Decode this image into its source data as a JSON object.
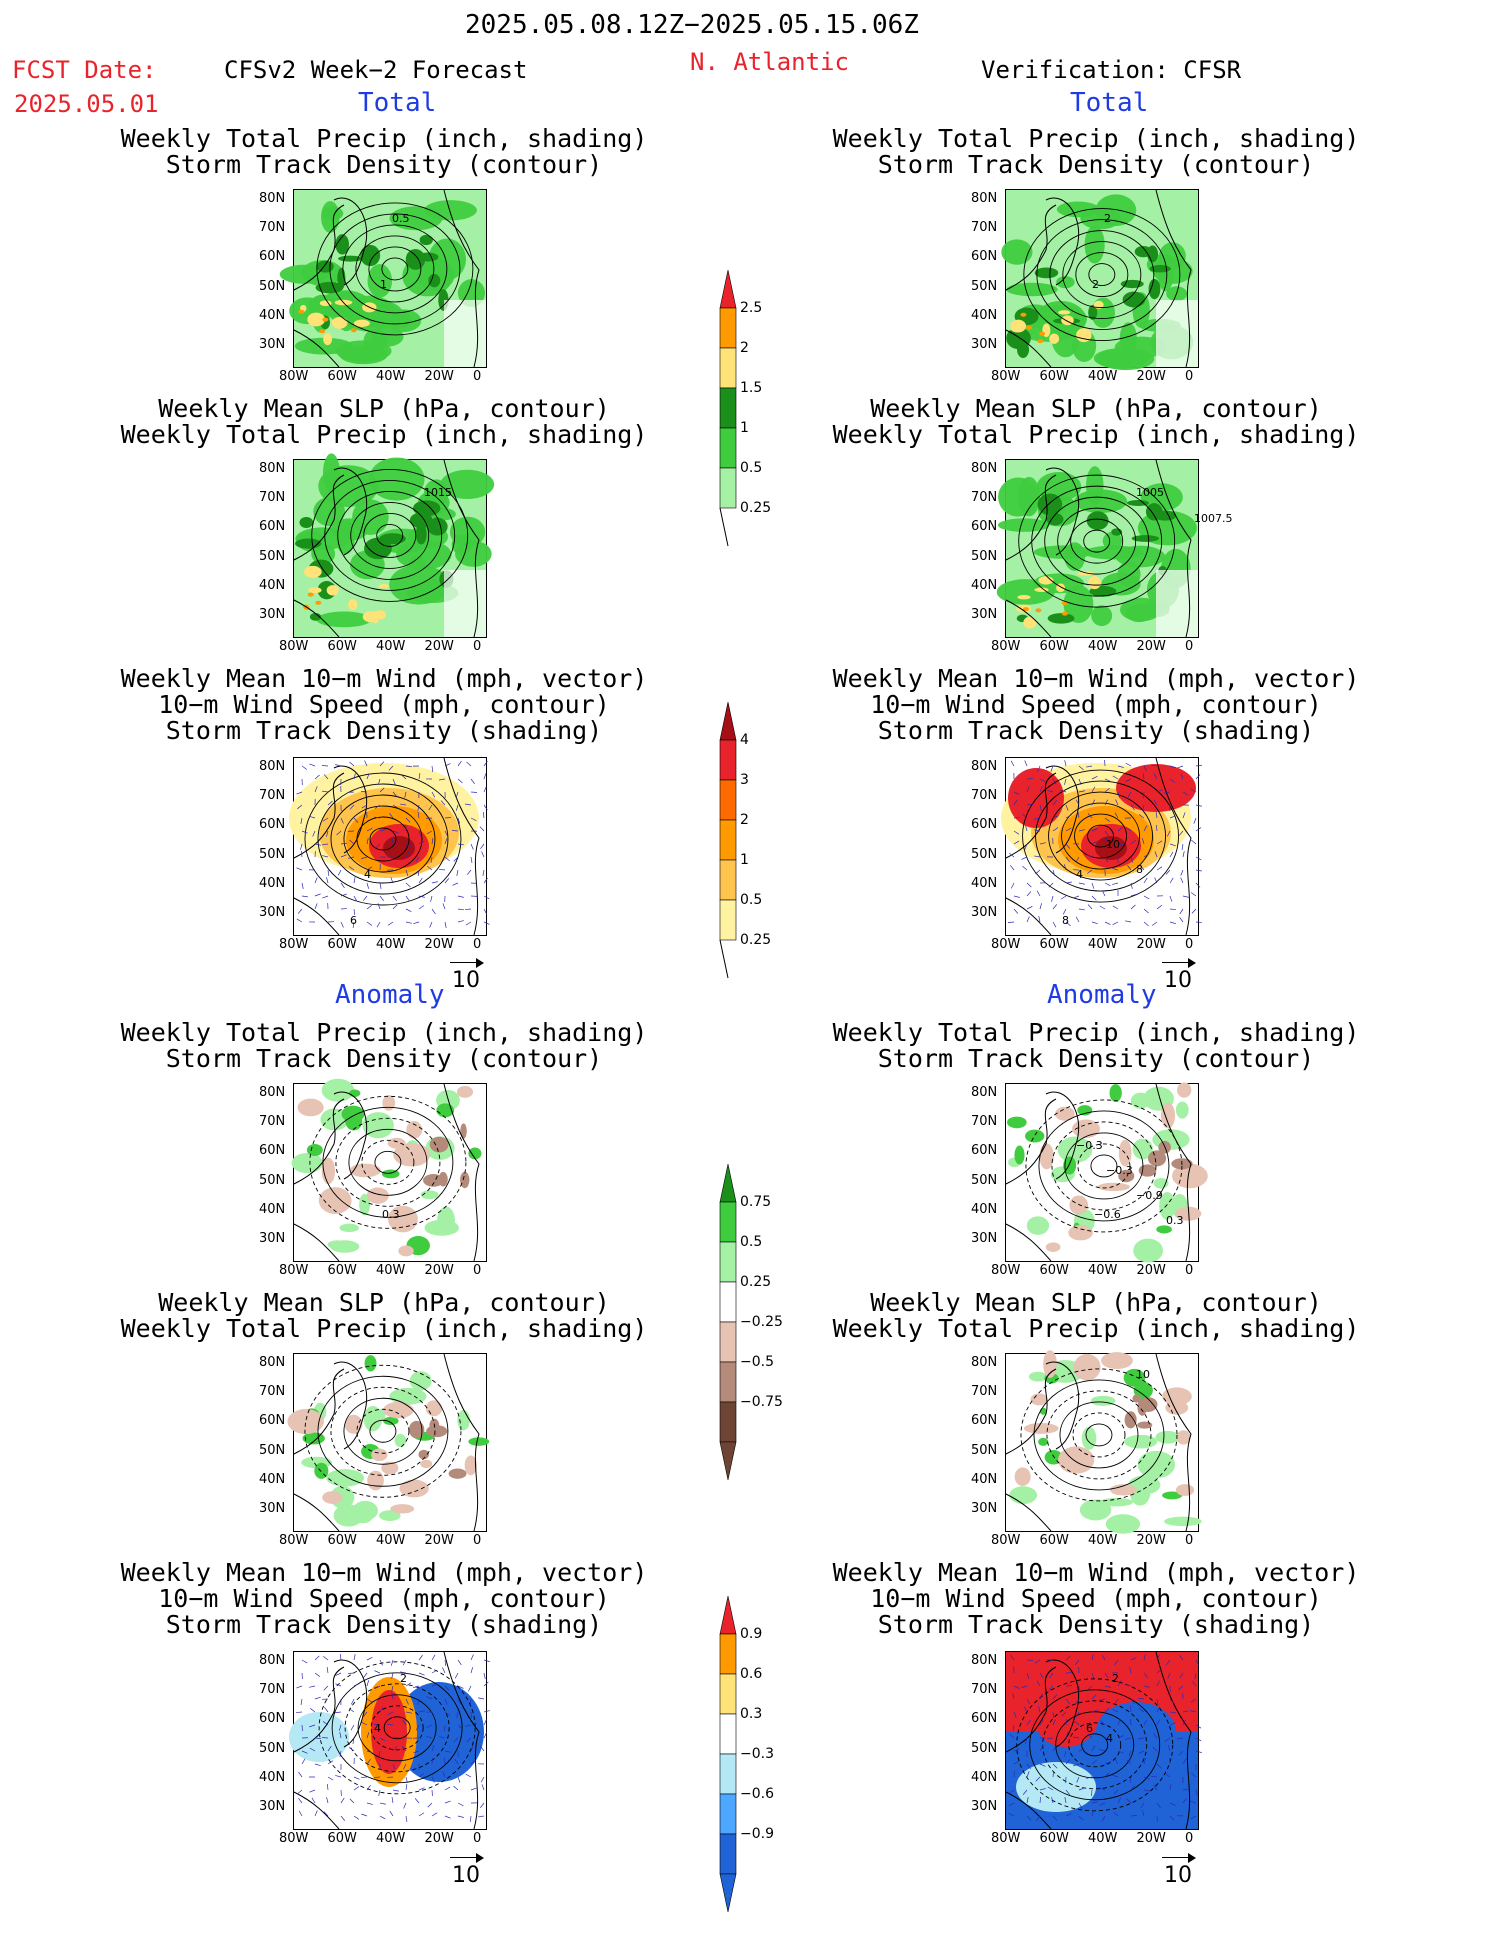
{
  "header": {
    "period": "2025.05.08.12Z−2025.05.15.06Z",
    "fcst_label": "FCST Date:",
    "fcst_date": "2025.05.01",
    "left_title": "CFSv2 Week−2 Forecast",
    "region": "N. Atlantic",
    "right_title": "Verification: CFSR"
  },
  "sections": {
    "total": "Total",
    "anomaly": "Anomaly"
  },
  "panel_titles": {
    "precip_track": [
      "Weekly Total Precip (inch, shading)",
      "Storm Track Density (contour)"
    ],
    "slp_precip": [
      "Weekly Mean SLP (hPa, contour)",
      "Weekly Total Precip (inch, shading)"
    ],
    "wind_track": [
      "Weekly Mean 10−m Wind (mph, vector)",
      "10−m Wind Speed (mph, contour)",
      "Storm Track Density (shading)"
    ]
  },
  "axes": {
    "lat_labels": [
      "80N",
      "70N",
      "60N",
      "50N",
      "40N",
      "30N"
    ],
    "lon_labels": [
      "80W",
      "60W",
      "40W",
      "20W",
      "0"
    ]
  },
  "vector_ref": "10",
  "colorbars": {
    "precip_total": {
      "labels": [
        "2.5",
        "2",
        "1.5",
        "1",
        "0.5",
        "0.25"
      ],
      "colors": [
        "#e8232b",
        "#ff9a00",
        "#ffe278",
        "#1a8f1a",
        "#3fcc3f",
        "#a4f0a4"
      ]
    },
    "track_total": {
      "labels": [
        "4",
        "3",
        "2",
        "1",
        "0.5",
        "0.25"
      ],
      "colors": [
        "#a50f15",
        "#e8232b",
        "#ff6a00",
        "#ff9a00",
        "#ffc44d",
        "#fff2a0"
      ]
    },
    "precip_anom": {
      "labels": [
        "0.75",
        "0.5",
        "0.25",
        "−0.25",
        "−0.5",
        "−0.75"
      ],
      "colors": [
        "#1a8f1a",
        "#3fcc3f",
        "#a4f0a4",
        "#ffffff",
        "#e6c3b3",
        "#b48a7a",
        "#6e4535"
      ]
    },
    "track_anom": {
      "labels": [
        "0.9",
        "0.6",
        "0.3",
        "−0.3",
        "−0.6",
        "−0.9"
      ],
      "colors": [
        "#e8232b",
        "#ff9a00",
        "#ffe278",
        "#ffffff",
        "#b5e8f5",
        "#4da6ff",
        "#1f63d6"
      ]
    }
  },
  "map_labels": {
    "l_pt": [
      "0.5",
      "1"
    ],
    "r_pt": [
      "2",
      "2"
    ],
    "l_sp": [
      "1015"
    ],
    "r_sp": [
      "1005",
      "1007.5"
    ],
    "l_wt": [
      "4",
      "6"
    ],
    "r_wt": [
      "4",
      "8",
      "10",
      "8"
    ],
    "l_pa": [
      "0.3"
    ],
    "r_pa": [
      "−0.6",
      "−0.3",
      "−0.3",
      "−0.9",
      "0.3"
    ],
    "l_sa": [],
    "r_sa": [
      "10"
    ],
    "l_wa": [
      "2",
      "4"
    ],
    "r_wa": [
      "2",
      "6",
      "4"
    ]
  }
}
